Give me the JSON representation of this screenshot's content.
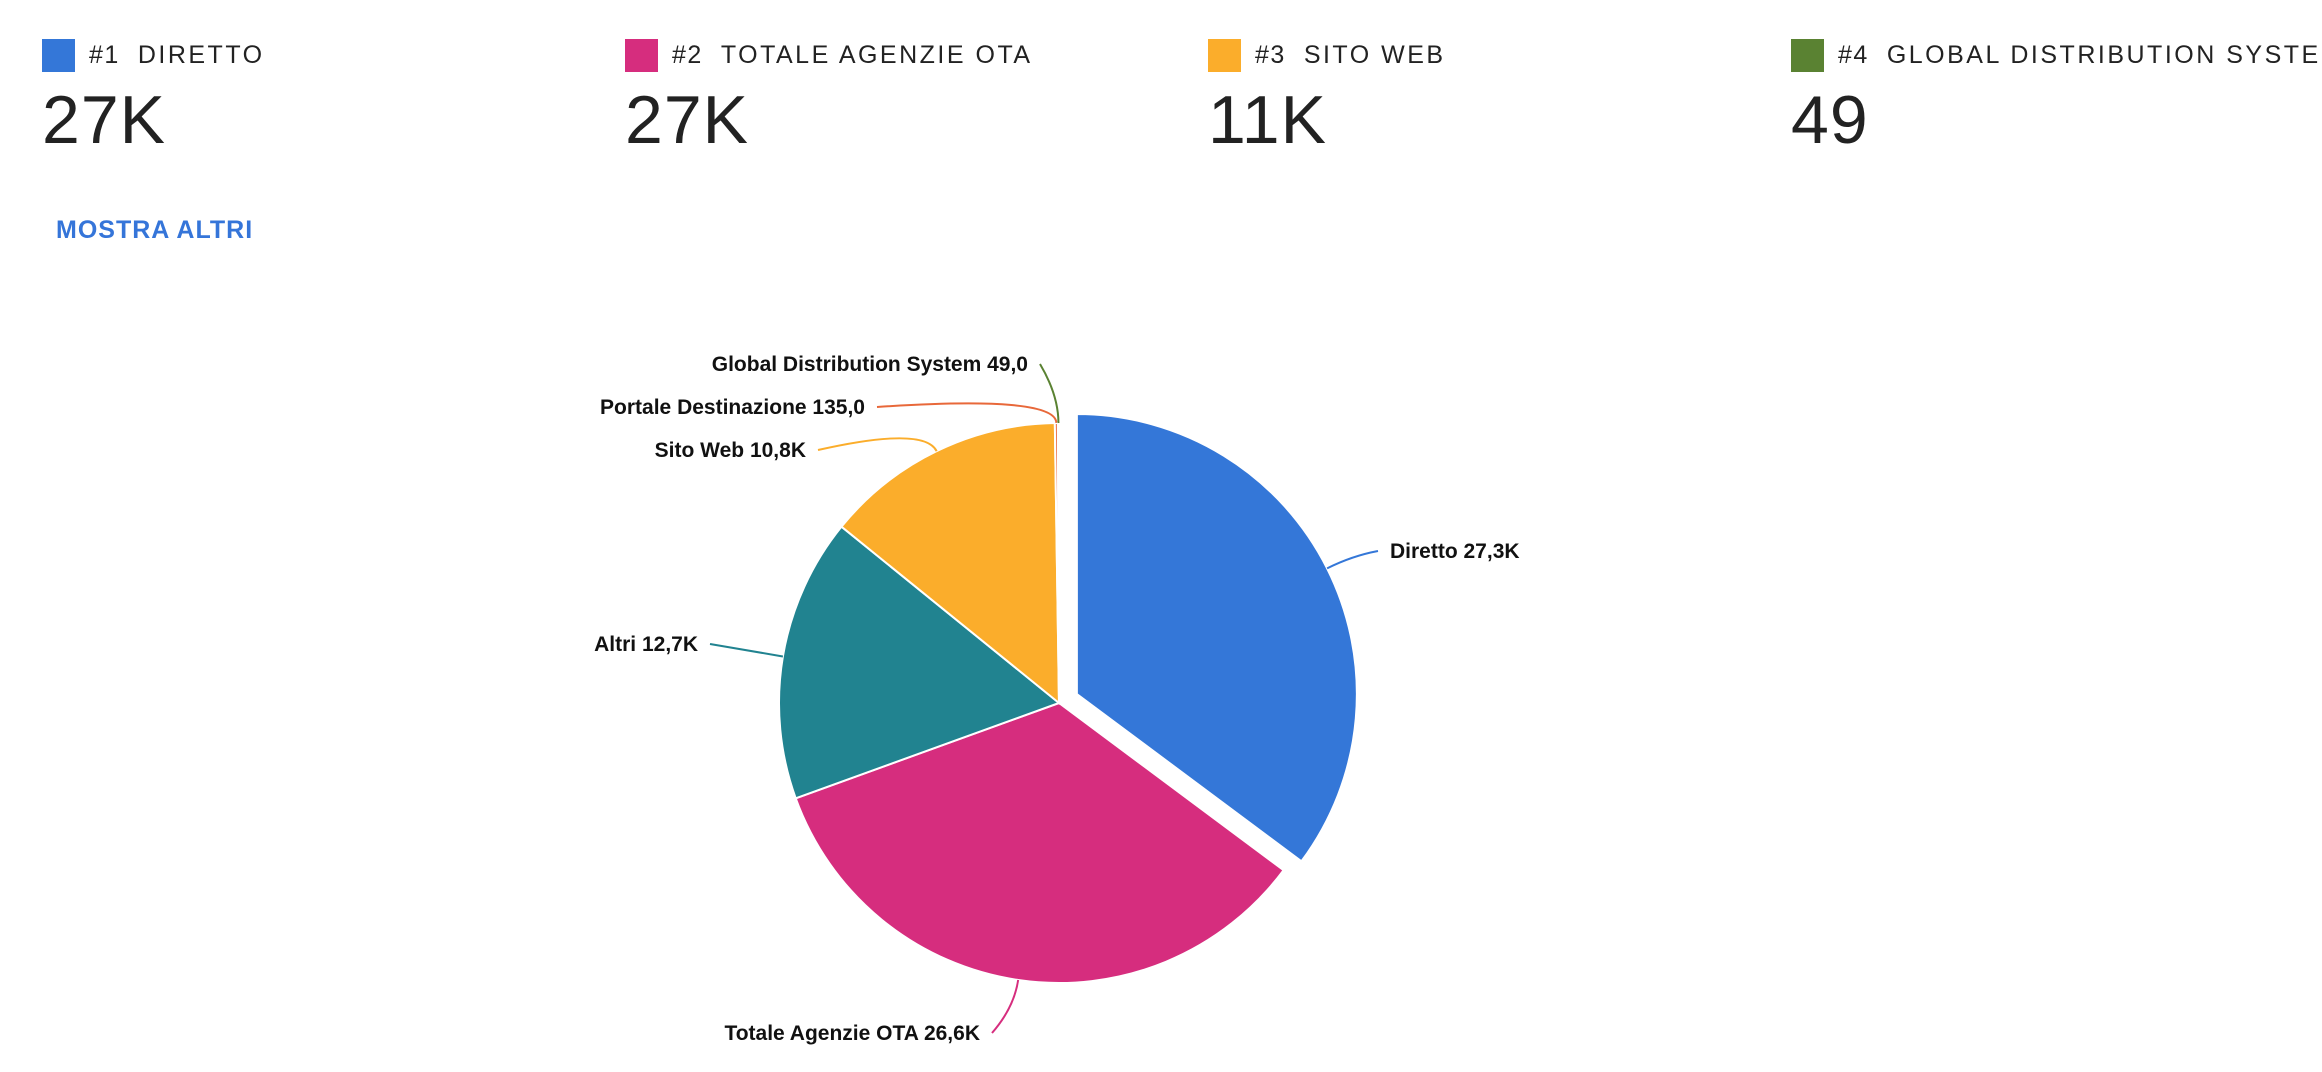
{
  "summary": {
    "items": [
      {
        "rank": "#1",
        "name": "DIRETTO",
        "value": "27K",
        "color": "#3477d8"
      },
      {
        "rank": "#2",
        "name": "TOTALE AGENZIE OTA",
        "value": "27K",
        "color": "#d62d7e"
      },
      {
        "rank": "#3",
        "name": "SITO WEB",
        "value": "11K",
        "color": "#fbad2b"
      },
      {
        "rank": "#4",
        "name": "GLOBAL DISTRIBUTION SYSTEM",
        "value": "49",
        "color": "#5a8232"
      }
    ],
    "show_more_label": "MOSTRA ALTRI"
  },
  "chart_data": {
    "type": "pie",
    "slices": [
      {
        "name": "Diretto",
        "value": 27300,
        "label": "Diretto 27,3K",
        "color": "#3477d8",
        "exploded": true
      },
      {
        "name": "Totale Agenzie OTA",
        "value": 26600,
        "label": "Totale Agenzie OTA 26,6K",
        "color": "#d62d7e"
      },
      {
        "name": "Altri",
        "value": 12700,
        "label": "Altri 12,7K",
        "color": "#218390"
      },
      {
        "name": "Sito Web",
        "value": 10800,
        "label": "Sito Web 10,8K",
        "color": "#fbad2b"
      },
      {
        "name": "Portale Destinazione",
        "value": 135,
        "label": "Portale Destinazione 135,0",
        "color": "#e8683a"
      },
      {
        "name": "Global Distribution System",
        "value": 49,
        "label": "Global Distribution System 49,0",
        "color": "#5a8232"
      }
    ]
  }
}
